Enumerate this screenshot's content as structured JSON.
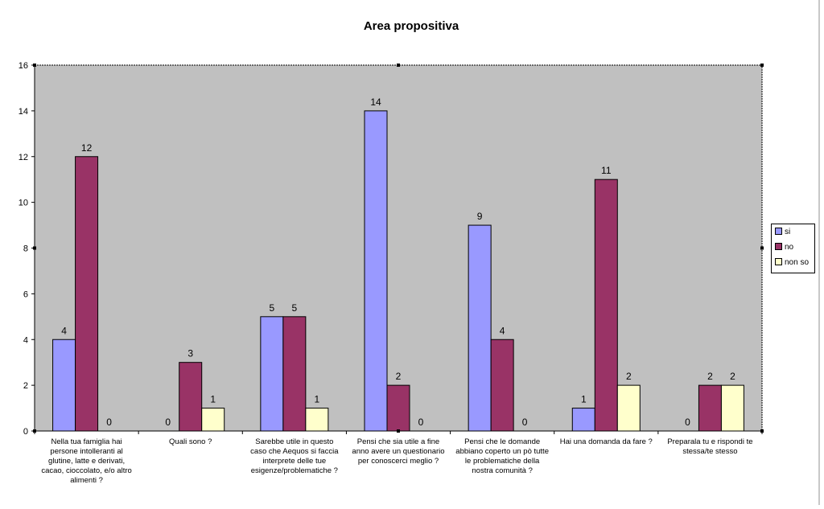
{
  "chart_data": {
    "type": "bar",
    "title": "Area propositiva",
    "categories": [
      "Nella tua famiglia hai\npersone intolleranti al\nglutine,  latte e derivati,\ncacao, cioccolato, e/o altro\nalimenti  ?",
      "Quali sono ?",
      "Sarebbe utile in questo\ncaso che Aequos si faccia\ninterprete delle tue\nesigenze/problematiche ?",
      "Pensi che sia utile a fine\nanno avere un questionario\nper conoscerci meglio  ?",
      "Pensi che le domande\nabbiano coperto un pò tutte\nle problematiche della\nnostra comunità  ?",
      "Hai una domanda da fare  ?",
      "Preparala tu e rispondi te\nstessa/te stesso"
    ],
    "series": [
      {
        "name": "si",
        "values": [
          4,
          0,
          5,
          14,
          9,
          1,
          0
        ],
        "color": "#9999ff"
      },
      {
        "name": "no",
        "values": [
          12,
          3,
          5,
          2,
          4,
          11,
          2
        ],
        "color": "#993366"
      },
      {
        "name": "non so",
        "values": [
          0,
          1,
          1,
          0,
          0,
          2,
          2
        ],
        "color": "#ffffcc"
      }
    ],
    "data_labels": [
      [
        "4",
        "0",
        "5",
        "14",
        "9",
        "1",
        "0"
      ],
      [
        "12",
        "3",
        "5",
        "2",
        "4",
        "11",
        "2"
      ],
      [
        "0",
        "1",
        "1",
        "0",
        "0",
        "2",
        "2"
      ]
    ],
    "ylim": [
      0,
      16
    ],
    "yticks": [
      "0",
      "2",
      "4",
      "6",
      "8",
      "10",
      "12",
      "14",
      "16"
    ],
    "xlabel": "",
    "ylabel": "",
    "plot_background": "#c0c0c0",
    "grid": false,
    "legend_position": "right"
  }
}
